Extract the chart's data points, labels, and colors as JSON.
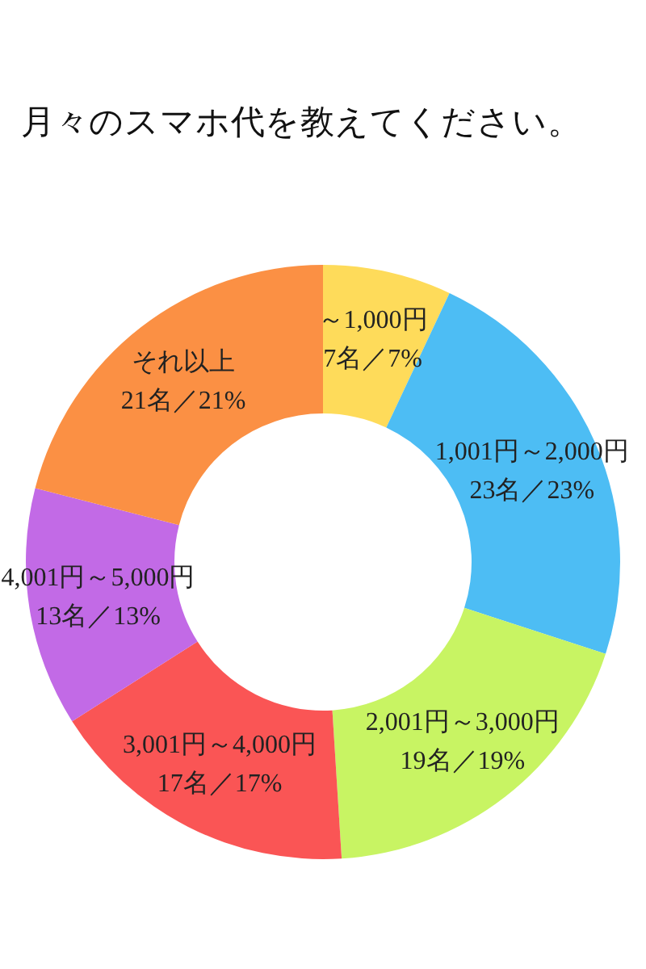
{
  "chart_data": {
    "type": "donut",
    "title": "月々のスマホ代を教えてください。",
    "categories": [
      "～1,000円",
      "1,001円～2,000円",
      "2,001円～3,000円",
      "3,001円～4,000円",
      "4,001円～5,000円",
      "それ以上"
    ],
    "values": [
      7,
      23,
      19,
      17,
      13,
      21
    ],
    "value_labels": [
      "7名／7%",
      "23名／23%",
      "19名／19%",
      "17名／17%",
      "13名／13%",
      "21名／21%"
    ],
    "colors": [
      "#fedb5a",
      "#4dbdf4",
      "#c8f463",
      "#fa5555",
      "#c26ae6",
      "#fb9044"
    ],
    "legend": false
  }
}
